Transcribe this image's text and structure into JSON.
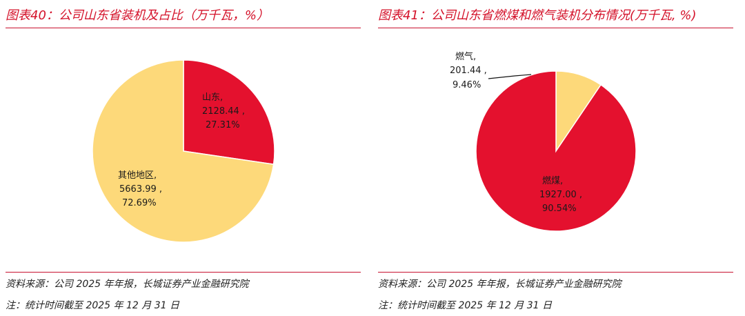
{
  "colors": {
    "accent": "#d4122a",
    "slice_red": "#e4112e",
    "slice_yellow": "#fdd97a",
    "rule": "#c8102e"
  },
  "charts": {
    "left": {
      "title": "图表40：公司山东省装机及占比（万千瓦，%）",
      "source": "资料来源：公司 2025 年年报，长城证券产业金融研究院",
      "note": "注：统计时间截至 2025 年 12 月 31 日",
      "labels": [
        {
          "name": "山东,",
          "value": "2128.44 ,",
          "pct": "27.31%"
        },
        {
          "name": "其他地区,",
          "value": "5663.99 ,",
          "pct": "72.69%"
        }
      ]
    },
    "right": {
      "title": "图表41：公司山东省燃煤和燃气装机分布情况(万千瓦, %)",
      "source": "资料来源：公司 2025 年年报，长城证券产业金融研究院",
      "note": "注：统计时间截至 2025 年 12 月 31 日",
      "labels": [
        {
          "name": "燃气,",
          "value": "201.44 ,",
          "pct": "9.46%"
        },
        {
          "name": "燃煤,",
          "value": "1927.00 ,",
          "pct": "90.54%"
        }
      ]
    }
  },
  "chart_data": [
    {
      "type": "pie",
      "title": "图表40：公司山东省装机及占比（万千瓦，%）",
      "unit": "万千瓦",
      "slices": [
        {
          "name": "山东",
          "value": 2128.44,
          "percent": 27.31,
          "color": "#e4112e"
        },
        {
          "name": "其他地区",
          "value": 5663.99,
          "percent": 72.69,
          "color": "#fdd97a"
        }
      ]
    },
    {
      "type": "pie",
      "title": "图表41：公司山东省燃煤和燃气装机分布情况(万千瓦, %)",
      "unit": "万千瓦",
      "slices": [
        {
          "name": "燃气",
          "value": 201.44,
          "percent": 9.46,
          "color": "#fdd97a"
        },
        {
          "name": "燃煤",
          "value": 1927.0,
          "percent": 90.54,
          "color": "#e4112e"
        }
      ]
    }
  ]
}
